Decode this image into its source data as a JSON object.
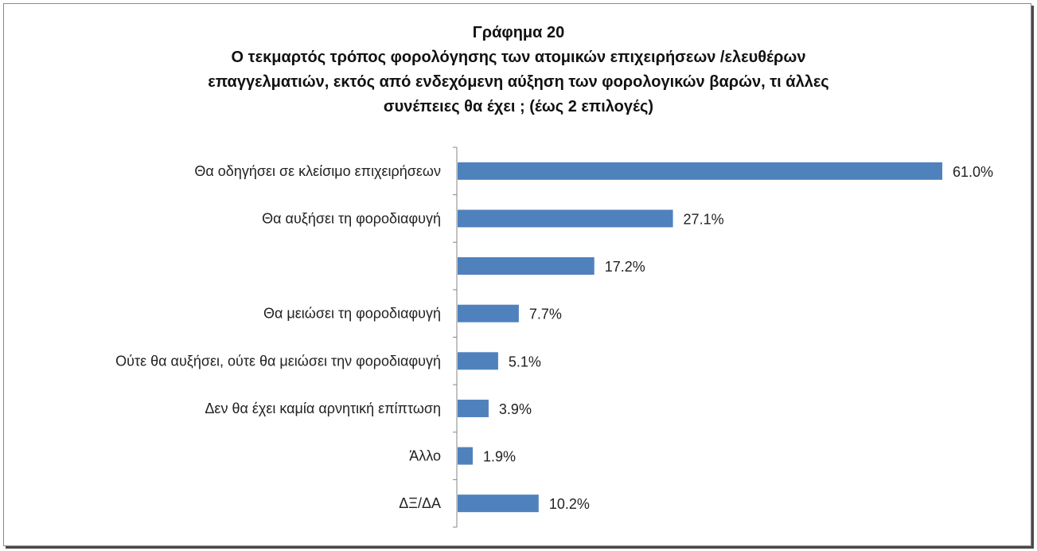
{
  "chart_data": {
    "type": "bar",
    "orientation": "horizontal",
    "title": "Γράφημα 20",
    "subtitle": [
      "Ο τεκμαρτός τρόπος φορολόγησης των ατομικών επιχειρήσεων /ελευθέρων",
      "επαγγελματιών, εκτός από ενδεχόμενη αύξηση των φορολογικών βαρών, τι άλλες",
      "συνέπειες θα έχει ; (έως 2 επιλογές)"
    ],
    "categories": [
      "Θα οδηγήσει σε κλείσιμο επιχειρήσεων",
      "Θα αυξήσει τη φοροδιαφυγή",
      "",
      "Θα  μειώσει τη φοροδιαφυγή",
      "Ούτε θα αυξήσει, ούτε θα μειώσει την φοροδιαφυγή",
      "Δεν θα έχει καμία αρνητική επίπτωση",
      "Άλλο",
      "ΔΞ/ΔΑ"
    ],
    "values": [
      61.0,
      27.1,
      17.2,
      7.7,
      5.1,
      3.9,
      1.9,
      10.2
    ],
    "value_labels": [
      "61.0%",
      "27.1%",
      "17.2%",
      "7.7%",
      "5.1%",
      "3.9%",
      "1.9%",
      "10.2%"
    ],
    "xlim": [
      0,
      61.0
    ],
    "grid": false,
    "legend": "none",
    "bar_color": "#4f81bd"
  }
}
